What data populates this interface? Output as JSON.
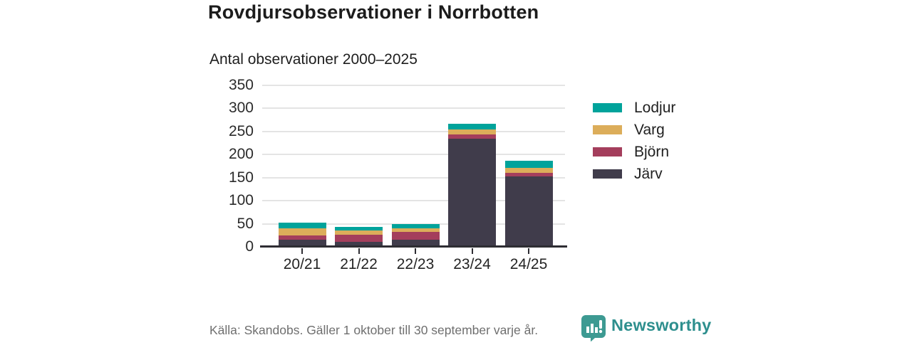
{
  "chart_data": {
    "type": "bar",
    "stacked": true,
    "title": "Rovdjursobservationer i Norrbotten",
    "subtitle": "Antal observationer 2000–2025",
    "categories": [
      "20/21",
      "21/22",
      "22/23",
      "23/24",
      "24/25"
    ],
    "series": [
      {
        "name": "Järv",
        "color": "#403c4b",
        "values": [
          15,
          11,
          15,
          235,
          152
        ]
      },
      {
        "name": "Björn",
        "color": "#a43e5c",
        "values": [
          10,
          15,
          18,
          9,
          8
        ]
      },
      {
        "name": "Varg",
        "color": "#dcad5a",
        "values": [
          15,
          10,
          7,
          10,
          11
        ]
      },
      {
        "name": "Lodjur",
        "color": "#00a39b",
        "values": [
          13,
          7,
          9,
          12,
          15
        ]
      }
    ],
    "totals": [
      53,
      43,
      49,
      266,
      186
    ],
    "ylim": [
      0,
      350
    ],
    "yticks": [
      0,
      50,
      100,
      150,
      200,
      250,
      300,
      350
    ],
    "grid": true,
    "legend_position": "right",
    "legend_order": [
      "Lodjur",
      "Varg",
      "Björn",
      "Järv"
    ]
  },
  "footer": {
    "source": "Källa: Skandobs. Gäller 1 oktober till 30 september varje år."
  },
  "brand": {
    "name": "Newsworthy",
    "icon": "newsworthy-chart-bubble-icon",
    "text_color": "#2e8f8e",
    "icon_color": "#3d9a92"
  }
}
